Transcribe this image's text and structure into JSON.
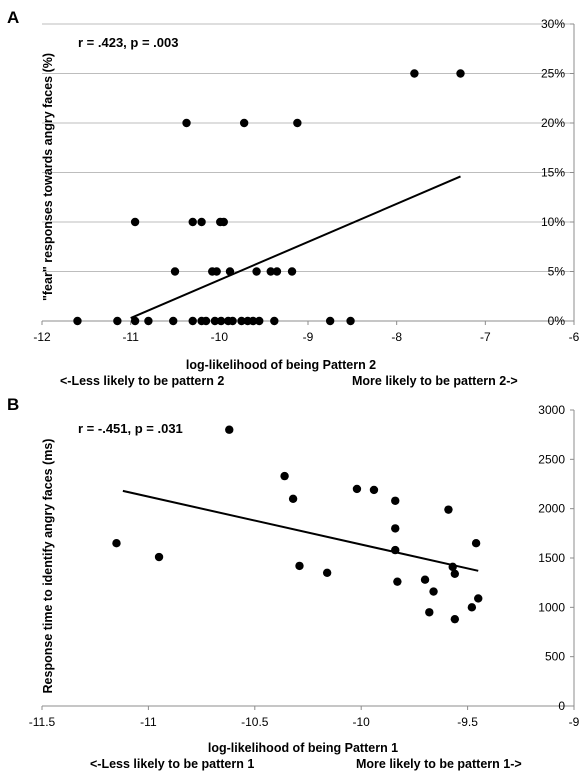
{
  "chart_data": [
    {
      "type": "scatter",
      "panel_label": "A",
      "annotation": "r = .423, p = .003",
      "xlabel": "log-likelihood of being Pattern 2",
      "xlabel_left": "<-Less likely to be pattern 2",
      "xlabel_right": "More likely to be pattern 2->",
      "ylabel": "\"fear\" responses towards angry faces (%)",
      "xlim": [
        -12,
        -6
      ],
      "ylim": [
        0,
        30
      ],
      "x_ticks": [
        -12,
        -11,
        -10,
        -9,
        -8,
        -7,
        -6
      ],
      "y_ticks": [
        0,
        5,
        10,
        15,
        20,
        25,
        30
      ],
      "y_tick_suffix": "%",
      "y_axis_side": "right",
      "grid": "horizontal",
      "points": [
        {
          "x": -11.6,
          "y": 0
        },
        {
          "x": -11.15,
          "y": 0
        },
        {
          "x": -10.95,
          "y": 0
        },
        {
          "x": -10.8,
          "y": 0
        },
        {
          "x": -10.52,
          "y": 0
        },
        {
          "x": -10.3,
          "y": 0
        },
        {
          "x": -10.2,
          "y": 0
        },
        {
          "x": -10.15,
          "y": 0
        },
        {
          "x": -10.05,
          "y": 0
        },
        {
          "x": -9.98,
          "y": 0
        },
        {
          "x": -9.9,
          "y": 0
        },
        {
          "x": -9.85,
          "y": 0
        },
        {
          "x": -9.75,
          "y": 0
        },
        {
          "x": -9.68,
          "y": 0
        },
        {
          "x": -9.62,
          "y": 0
        },
        {
          "x": -9.55,
          "y": 0
        },
        {
          "x": -9.38,
          "y": 0
        },
        {
          "x": -8.75,
          "y": 0
        },
        {
          "x": -8.52,
          "y": 0
        },
        {
          "x": -10.5,
          "y": 5
        },
        {
          "x": -10.08,
          "y": 5
        },
        {
          "x": -10.03,
          "y": 5
        },
        {
          "x": -9.88,
          "y": 5
        },
        {
          "x": -9.58,
          "y": 5
        },
        {
          "x": -9.42,
          "y": 5
        },
        {
          "x": -9.35,
          "y": 5
        },
        {
          "x": -9.18,
          "y": 5
        },
        {
          "x": -10.95,
          "y": 10
        },
        {
          "x": -10.3,
          "y": 10
        },
        {
          "x": -10.2,
          "y": 10
        },
        {
          "x": -9.99,
          "y": 10
        },
        {
          "x": -9.95,
          "y": 10
        },
        {
          "x": -10.37,
          "y": 20
        },
        {
          "x": -9.72,
          "y": 20
        },
        {
          "x": -9.12,
          "y": 20
        },
        {
          "x": -7.8,
          "y": 25
        },
        {
          "x": -7.28,
          "y": 25
        }
      ],
      "trendline": [
        {
          "x": -11.0,
          "y": 0.3
        },
        {
          "x": -7.28,
          "y": 14.6
        }
      ]
    },
    {
      "type": "scatter",
      "panel_label": "B",
      "annotation": "r = -.451, p = .031",
      "xlabel": "log-likelihood of being Pattern 1",
      "xlabel_left": "<-Less likely to be pattern 1",
      "xlabel_right": "More likely to be pattern 1->",
      "ylabel": "Response time to identify angry faces (ms)",
      "xlim": [
        -11.5,
        -9
      ],
      "ylim": [
        0,
        3000
      ],
      "x_ticks": [
        -11.5,
        -11,
        -10.5,
        -10,
        -9.5,
        -9
      ],
      "y_ticks": [
        0,
        500,
        1000,
        1500,
        2000,
        2500,
        3000
      ],
      "y_tick_suffix": "",
      "y_axis_side": "right",
      "grid": "none",
      "points": [
        {
          "x": -11.15,
          "y": 1650
        },
        {
          "x": -10.95,
          "y": 1510
        },
        {
          "x": -10.62,
          "y": 2800
        },
        {
          "x": -10.36,
          "y": 2330
        },
        {
          "x": -10.32,
          "y": 2100
        },
        {
          "x": -10.29,
          "y": 1420
        },
        {
          "x": -10.16,
          "y": 1350
        },
        {
          "x": -10.02,
          "y": 2200
        },
        {
          "x": -9.94,
          "y": 2190
        },
        {
          "x": -9.84,
          "y": 2080
        },
        {
          "x": -9.84,
          "y": 1800
        },
        {
          "x": -9.84,
          "y": 1580
        },
        {
          "x": -9.83,
          "y": 1260
        },
        {
          "x": -9.7,
          "y": 1280
        },
        {
          "x": -9.66,
          "y": 1160
        },
        {
          "x": -9.68,
          "y": 950
        },
        {
          "x": -9.59,
          "y": 1990
        },
        {
          "x": -9.57,
          "y": 1410
        },
        {
          "x": -9.56,
          "y": 1340
        },
        {
          "x": -9.56,
          "y": 880
        },
        {
          "x": -9.48,
          "y": 1000
        },
        {
          "x": -9.46,
          "y": 1650
        },
        {
          "x": -9.45,
          "y": 1090
        }
      ],
      "trendline": [
        {
          "x": -11.12,
          "y": 2180
        },
        {
          "x": -9.45,
          "y": 1370
        }
      ]
    }
  ]
}
